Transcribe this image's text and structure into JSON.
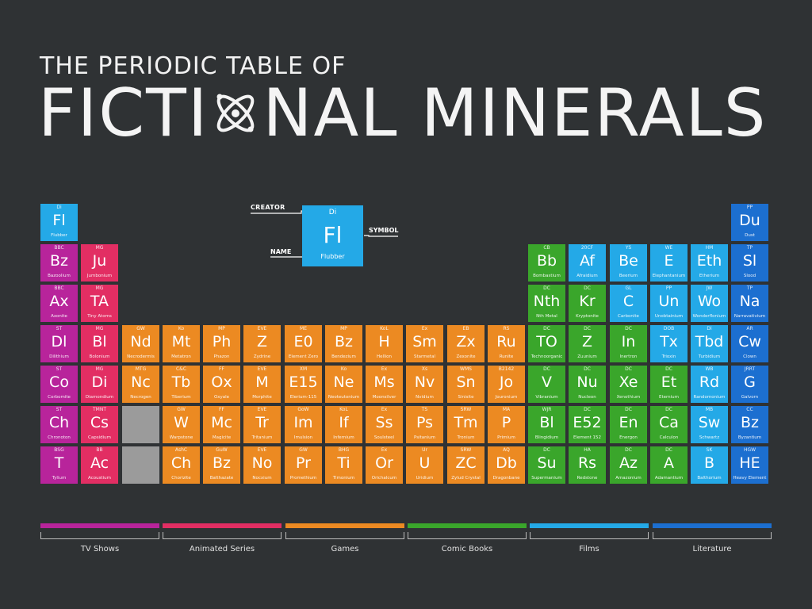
{
  "title": {
    "top": "THE PERIODIC TABLE OF",
    "main_left": "FICTI",
    "main_right": "NAL MINERALS"
  },
  "colors": {
    "background": "#2f3234",
    "tv_shows": "#b8249b",
    "animated_series": "#e22e63",
    "games": "#ec8a22",
    "comic_books": "#3aa62b",
    "films": "#24a9e7",
    "literature": "#1c6fd0",
    "blank": "#9b9b9b"
  },
  "key": {
    "creator_label": "CREATOR",
    "symbol_label": "SYMBOL",
    "name_label": "NAME",
    "creator": "Di",
    "symbol": "Fl",
    "name": "Flubber",
    "category": "films"
  },
  "legend": [
    {
      "label": "TV Shows",
      "category": "tv_shows"
    },
    {
      "label": "Animated Series",
      "category": "animated_series"
    },
    {
      "label": "Games",
      "category": "games"
    },
    {
      "label": "Comic Books",
      "category": "comic_books"
    },
    {
      "label": "Films",
      "category": "films"
    },
    {
      "label": "Literature",
      "category": "literature"
    }
  ],
  "elements": [
    {
      "col": 1,
      "row": 1,
      "cr": "Di",
      "sym": "Fl",
      "name": "Flubber",
      "cat": "films"
    },
    {
      "col": 18,
      "row": 1,
      "cr": "PP",
      "sym": "Du",
      "name": "Dust",
      "cat": "literature"
    },
    {
      "col": 1,
      "row": 2,
      "cr": "BBC",
      "sym": "Bz",
      "name": "Bazoolium",
      "cat": "tv_shows"
    },
    {
      "col": 2,
      "row": 2,
      "cr": "MG",
      "sym": "Ju",
      "name": "Jumbonium",
      "cat": "animated_series"
    },
    {
      "col": 13,
      "row": 2,
      "cr": "CB",
      "sym": "Bb",
      "name": "Bombastium",
      "cat": "comic_books"
    },
    {
      "col": 14,
      "row": 2,
      "cr": "20CF",
      "sym": "Af",
      "name": "Afraidium",
      "cat": "films"
    },
    {
      "col": 15,
      "row": 2,
      "cr": "YS",
      "sym": "Be",
      "name": "Beerium",
      "cat": "films"
    },
    {
      "col": 16,
      "row": 2,
      "cr": "WE",
      "sym": "E",
      "name": "Elephantanium",
      "cat": "films"
    },
    {
      "col": 17,
      "row": 2,
      "cr": "HM",
      "sym": "Eth",
      "name": "Etherium",
      "cat": "films"
    },
    {
      "col": 18,
      "row": 2,
      "cr": "TP",
      "sym": "Sl",
      "name": "Slood",
      "cat": "literature"
    },
    {
      "col": 1,
      "row": 3,
      "cr": "BBC",
      "sym": "Ax",
      "name": "Axonite",
      "cat": "tv_shows"
    },
    {
      "col": 2,
      "row": 3,
      "cr": "MG",
      "sym": "TA",
      "name": "Tiny Atoms",
      "cat": "animated_series"
    },
    {
      "col": 13,
      "row": 3,
      "cr": "DC",
      "sym": "Nth",
      "name": "Nth Metal",
      "cat": "comic_books"
    },
    {
      "col": 14,
      "row": 3,
      "cr": "DC",
      "sym": "Kr",
      "name": "Kryptonite",
      "cat": "comic_books"
    },
    {
      "col": 15,
      "row": 3,
      "cr": "GL",
      "sym": "C",
      "name": "Carbonite",
      "cat": "films"
    },
    {
      "col": 16,
      "row": 3,
      "cr": "PP",
      "sym": "Un",
      "name": "Unobtainium",
      "cat": "films"
    },
    {
      "col": 17,
      "row": 3,
      "cr": "JW",
      "sym": "Wo",
      "name": "Wonderflonium",
      "cat": "films"
    },
    {
      "col": 18,
      "row": 3,
      "cr": "TP",
      "sym": "Na",
      "name": "Narravativium",
      "cat": "literature"
    },
    {
      "col": 1,
      "row": 4,
      "cr": "ST",
      "sym": "Dl",
      "name": "Dilithium",
      "cat": "tv_shows"
    },
    {
      "col": 2,
      "row": 4,
      "cr": "MG",
      "sym": "Bl",
      "name": "Bolonium",
      "cat": "animated_series"
    },
    {
      "col": 3,
      "row": 4,
      "cr": "GW",
      "sym": "Nd",
      "name": "Necrodermis",
      "cat": "games"
    },
    {
      "col": 4,
      "row": 4,
      "cr": "Ko",
      "sym": "Mt",
      "name": "Metatron",
      "cat": "games"
    },
    {
      "col": 5,
      "row": 4,
      "cr": "MP",
      "sym": "Ph",
      "name": "Phazon",
      "cat": "games"
    },
    {
      "col": 6,
      "row": 4,
      "cr": "EVE",
      "sym": "Z",
      "name": "Zydrine",
      "cat": "games"
    },
    {
      "col": 7,
      "row": 4,
      "cr": "ME",
      "sym": "E0",
      "name": "Element Zero",
      "cat": "games"
    },
    {
      "col": 8,
      "row": 4,
      "cr": "MP",
      "sym": "Bz",
      "name": "Bendezium",
      "cat": "games"
    },
    {
      "col": 9,
      "row": 4,
      "cr": "KoL",
      "sym": "H",
      "name": "Hellion",
      "cat": "games"
    },
    {
      "col": 10,
      "row": 4,
      "cr": "Ex",
      "sym": "Sm",
      "name": "Starmetal",
      "cat": "games"
    },
    {
      "col": 11,
      "row": 4,
      "cr": "EB",
      "sym": "Zx",
      "name": "Zexonite",
      "cat": "games"
    },
    {
      "col": 12,
      "row": 4,
      "cr": "RS",
      "sym": "Ru",
      "name": "Runite",
      "cat": "games"
    },
    {
      "col": 13,
      "row": 4,
      "cr": "DC",
      "sym": "TO",
      "name": "Technoorganic",
      "cat": "comic_books"
    },
    {
      "col": 14,
      "row": 4,
      "cr": "DC",
      "sym": "Z",
      "name": "Zuunium",
      "cat": "comic_books"
    },
    {
      "col": 15,
      "row": 4,
      "cr": "DC",
      "sym": "In",
      "name": "Inertron",
      "cat": "comic_books"
    },
    {
      "col": 16,
      "row": 4,
      "cr": "DOB",
      "sym": "Tx",
      "name": "Trioxin",
      "cat": "films"
    },
    {
      "col": 17,
      "row": 4,
      "cr": "Di",
      "sym": "Tbd",
      "name": "Turbidium",
      "cat": "films"
    },
    {
      "col": 18,
      "row": 4,
      "cr": "AR",
      "sym": "Cw",
      "name": "Clown",
      "cat": "literature"
    },
    {
      "col": 1,
      "row": 5,
      "cr": "ST",
      "sym": "Co",
      "name": "Corbomite",
      "cat": "tv_shows"
    },
    {
      "col": 2,
      "row": 5,
      "cr": "MG",
      "sym": "Di",
      "name": "Diamondium",
      "cat": "animated_series"
    },
    {
      "col": 3,
      "row": 5,
      "cr": "MTG",
      "sym": "Nc",
      "name": "Necrogen",
      "cat": "games"
    },
    {
      "col": 4,
      "row": 5,
      "cr": "C&C",
      "sym": "Tb",
      "name": "Tiberium",
      "cat": "games"
    },
    {
      "col": 5,
      "row": 5,
      "cr": "FF",
      "sym": "Ox",
      "name": "Oxyale",
      "cat": "games"
    },
    {
      "col": 6,
      "row": 5,
      "cr": "EVE",
      "sym": "M",
      "name": "Morphite",
      "cat": "games"
    },
    {
      "col": 7,
      "row": 5,
      "cr": "XM",
      "sym": "E15",
      "name": "Elerium-115",
      "cat": "games"
    },
    {
      "col": 8,
      "row": 5,
      "cr": "Ko",
      "sym": "Ne",
      "name": "Neoteutonium",
      "cat": "games"
    },
    {
      "col": 9,
      "row": 5,
      "cr": "Ex",
      "sym": "Ms",
      "name": "Moonsilver",
      "cat": "games"
    },
    {
      "col": 10,
      "row": 5,
      "cr": "Xs",
      "sym": "Nv",
      "name": "Nvidium",
      "cat": "games"
    },
    {
      "col": 11,
      "row": 5,
      "cr": "WMS",
      "sym": "Sn",
      "name": "Sinisite",
      "cat": "games"
    },
    {
      "col": 12,
      "row": 5,
      "cr": "B2142",
      "sym": "Jo",
      "name": "Jouronium",
      "cat": "games"
    },
    {
      "col": 13,
      "row": 5,
      "cr": "DC",
      "sym": "V",
      "name": "Vibranium",
      "cat": "comic_books"
    },
    {
      "col": 14,
      "row": 5,
      "cr": "DC",
      "sym": "Nu",
      "name": "Nucleon",
      "cat": "comic_books"
    },
    {
      "col": 15,
      "row": 5,
      "cr": "DC",
      "sym": "Xe",
      "name": "Xenothium",
      "cat": "comic_books"
    },
    {
      "col": 16,
      "row": 5,
      "cr": "DC",
      "sym": "Et",
      "name": "Eternium",
      "cat": "comic_books"
    },
    {
      "col": 17,
      "row": 5,
      "cr": "WB",
      "sym": "Rd",
      "name": "Randomonium",
      "cat": "films"
    },
    {
      "col": 18,
      "row": 5,
      "cr": "JRRT",
      "sym": "G",
      "name": "Galvorn",
      "cat": "literature"
    },
    {
      "col": 1,
      "row": 6,
      "cr": "ST",
      "sym": "Ch",
      "name": "Chronoton",
      "cat": "tv_shows"
    },
    {
      "col": 2,
      "row": 6,
      "cr": "TMNT",
      "sym": "Cs",
      "name": "Capsidium",
      "cat": "animated_series"
    },
    {
      "col": 4,
      "row": 6,
      "cr": "GW",
      "sym": "W",
      "name": "Warpstone",
      "cat": "games"
    },
    {
      "col": 5,
      "row": 6,
      "cr": "FF",
      "sym": "Mc",
      "name": "Magicite",
      "cat": "games"
    },
    {
      "col": 6,
      "row": 6,
      "cr": "EVE",
      "sym": "Tr",
      "name": "Tritanium",
      "cat": "games"
    },
    {
      "col": 7,
      "row": 6,
      "cr": "GoW",
      "sym": "Im",
      "name": "Imulsion",
      "cat": "games"
    },
    {
      "col": 8,
      "row": 6,
      "cr": "KoL",
      "sym": "If",
      "name": "Infernium",
      "cat": "games"
    },
    {
      "col": 9,
      "row": 6,
      "cr": "Ex",
      "sym": "Ss",
      "name": "Soulsteel",
      "cat": "games"
    },
    {
      "col": 10,
      "row": 6,
      "cr": "TS",
      "sym": "Ps",
      "name": "Psitanium",
      "cat": "games"
    },
    {
      "col": 11,
      "row": 6,
      "cr": "SRW",
      "sym": "Tm",
      "name": "Tronium",
      "cat": "games"
    },
    {
      "col": 12,
      "row": 6,
      "cr": "MA",
      "sym": "P",
      "name": "Primium",
      "cat": "games"
    },
    {
      "col": 13,
      "row": 6,
      "cr": "WJR",
      "sym": "Bl",
      "name": "Blingidium",
      "cat": "comic_books"
    },
    {
      "col": 14,
      "row": 6,
      "cr": "DC",
      "sym": "E52",
      "name": "Element 152",
      "cat": "comic_books"
    },
    {
      "col": 15,
      "row": 6,
      "cr": "DC",
      "sym": "En",
      "name": "Energon",
      "cat": "comic_books"
    },
    {
      "col": 16,
      "row": 6,
      "cr": "DC",
      "sym": "Ca",
      "name": "Calculon",
      "cat": "comic_books"
    },
    {
      "col": 17,
      "row": 6,
      "cr": "MB",
      "sym": "Sw",
      "name": "Schwartz",
      "cat": "films"
    },
    {
      "col": 18,
      "row": 6,
      "cr": "CC",
      "sym": "Bz",
      "name": "Byzantium",
      "cat": "literature"
    },
    {
      "col": 1,
      "row": 7,
      "cr": "BSG",
      "sym": "T",
      "name": "Tylium",
      "cat": "tv_shows"
    },
    {
      "col": 2,
      "row": 7,
      "cr": "BB",
      "sym": "Ac",
      "name": "Acoustium",
      "cat": "animated_series"
    },
    {
      "col": 4,
      "row": 7,
      "cr": "AshC",
      "sym": "Ch",
      "name": "Chorizite",
      "cat": "games"
    },
    {
      "col": 5,
      "row": 7,
      "cr": "GuW",
      "sym": "Bz",
      "name": "Balthazate",
      "cat": "games"
    },
    {
      "col": 6,
      "row": 7,
      "cr": "EVE",
      "sym": "No",
      "name": "Nocxium",
      "cat": "games"
    },
    {
      "col": 7,
      "row": 7,
      "cr": "GW",
      "sym": "Pr",
      "name": "Promethium",
      "cat": "games"
    },
    {
      "col": 8,
      "row": 7,
      "cr": "BHG",
      "sym": "Ti",
      "name": "Timonium",
      "cat": "games"
    },
    {
      "col": 9,
      "row": 7,
      "cr": "Ex",
      "sym": "Or",
      "name": "Orichalcum",
      "cat": "games"
    },
    {
      "col": 10,
      "row": 7,
      "cr": "Ur",
      "sym": "U",
      "name": "Uridium",
      "cat": "games"
    },
    {
      "col": 11,
      "row": 7,
      "cr": "SRW",
      "sym": "ZC",
      "name": "Zylud Crystal",
      "cat": "games"
    },
    {
      "col": 12,
      "row": 7,
      "cr": "AQ",
      "sym": "Db",
      "name": "Dragonbane",
      "cat": "games"
    },
    {
      "col": 13,
      "row": 7,
      "cr": "DC",
      "sym": "Su",
      "name": "Supermanium",
      "cat": "comic_books"
    },
    {
      "col": 14,
      "row": 7,
      "cr": "HA",
      "sym": "Rs",
      "name": "Redstone",
      "cat": "comic_books"
    },
    {
      "col": 15,
      "row": 7,
      "cr": "DC",
      "sym": "Az",
      "name": "Amazonium",
      "cat": "comic_books"
    },
    {
      "col": 16,
      "row": 7,
      "cr": "DC",
      "sym": "A",
      "name": "Adamantium",
      "cat": "comic_books"
    },
    {
      "col": 17,
      "row": 7,
      "cr": "SK",
      "sym": "B",
      "name": "Balthorium",
      "cat": "films"
    },
    {
      "col": 18,
      "row": 7,
      "cr": "HGW",
      "sym": "HE",
      "name": "Heavy Element",
      "cat": "literature"
    }
  ],
  "blanks": [
    {
      "col": 3,
      "row": 6
    },
    {
      "col": 3,
      "row": 7
    }
  ]
}
